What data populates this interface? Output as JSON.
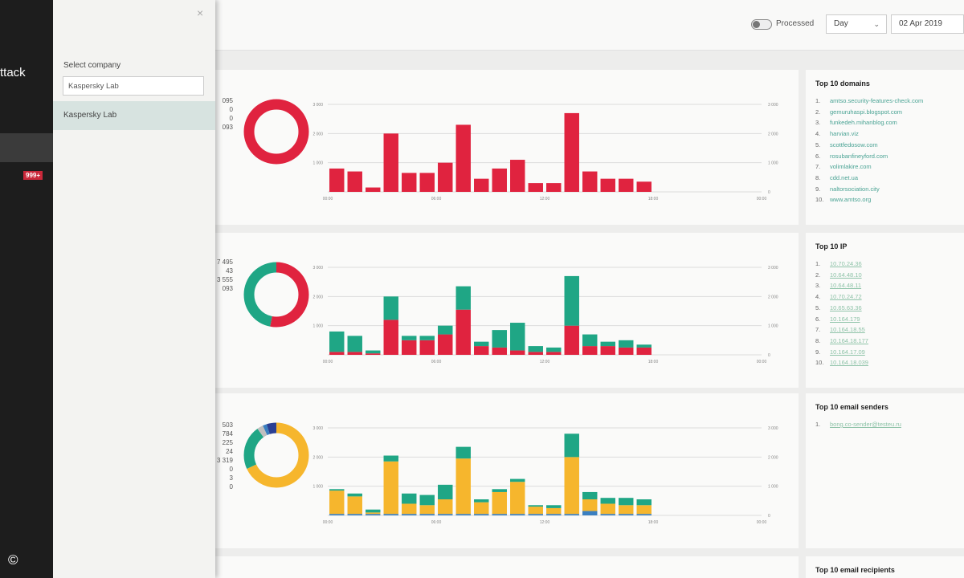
{
  "sidebar": {
    "title": "ttack",
    "badge": "999+",
    "copyright": "©"
  },
  "company_panel": {
    "close": "×",
    "label": "Select company",
    "search_value": "Kaspersky Lab",
    "option": "Kaspersky Lab"
  },
  "toolbar": {
    "processed_label": "Processed",
    "period": "Day",
    "period_caret": "⌄",
    "date": "02 Apr 2019"
  },
  "colors": {
    "red": "#e0233f",
    "green": "#1fa685",
    "yellow": "#f6b62d",
    "blue": "#3a7fc0",
    "navy": "#2b3f93",
    "grey": "#bfbfbf"
  },
  "panels": [
    {
      "legend": [
        "095",
        "0",
        "0",
        "093"
      ]
    },
    {
      "legend": [
        "7 495",
        "43",
        "3 555",
        "093"
      ]
    },
    {
      "legend": [
        "503",
        "784",
        "225",
        "24",
        "3 319",
        "0",
        "3",
        "0"
      ]
    }
  ],
  "chart_data": [
    {
      "type": "bar",
      "categories": [
        "00:00",
        "01:00",
        "02:00",
        "03:00",
        "04:00",
        "05:00",
        "06:00",
        "07:00",
        "08:00",
        "09:00",
        "10:00",
        "11:00",
        "12:00",
        "13:00",
        "14:00",
        "15:00",
        "16:00",
        "17:00",
        "18:00",
        "19:00",
        "20:00",
        "21:00",
        "22:00",
        "23:00"
      ],
      "series": [
        {
          "values": [
            800,
            700,
            150,
            2000,
            650,
            650,
            1000,
            2300,
            450,
            800,
            1100,
            300,
            300,
            2700,
            700,
            450,
            450,
            350,
            0,
            0,
            0,
            0,
            0,
            0
          ]
        }
      ],
      "ylim": [
        0,
        3000
      ],
      "yticks_left": [
        "3 000",
        "2 000",
        "1 000",
        ""
      ],
      "yticks_right": [
        "3 000",
        "2 000",
        "1 000",
        "0"
      ],
      "xticks": [
        "00:00",
        "06:00",
        "12:00",
        "18:00",
        "00:00"
      ],
      "donut": [
        {
          "value": 1,
          "color": "red"
        }
      ]
    },
    {
      "type": "bar",
      "stacked": true,
      "categories": [
        "00:00",
        "01:00",
        "02:00",
        "03:00",
        "04:00",
        "05:00",
        "06:00",
        "07:00",
        "08:00",
        "09:00",
        "10:00",
        "11:00",
        "12:00",
        "13:00",
        "14:00",
        "15:00",
        "16:00",
        "17:00",
        "18:00",
        "19:00",
        "20:00",
        "21:00",
        "22:00",
        "23:00"
      ],
      "series": [
        {
          "color": "red",
          "values": [
            100,
            100,
            50,
            1200,
            500,
            500,
            700,
            1550,
            300,
            250,
            150,
            100,
            100,
            1000,
            300,
            300,
            250,
            250,
            0,
            0,
            0,
            0,
            0,
            0
          ]
        },
        {
          "color": "green",
          "values": [
            700,
            550,
            100,
            800,
            150,
            150,
            300,
            800,
            150,
            600,
            950,
            200,
            150,
            1700,
            400,
            150,
            250,
            100,
            0,
            0,
            0,
            0,
            0,
            0
          ]
        }
      ],
      "ylim": [
        0,
        3000
      ],
      "yticks_left": [
        "3 000",
        "2 000",
        "1 000",
        ""
      ],
      "yticks_right": [
        "3 000",
        "2 000",
        "1 000",
        "0"
      ],
      "xticks": [
        "00:00",
        "06:00",
        "12:00",
        "18:00",
        "00:00"
      ],
      "donut": [
        {
          "value": 0.53,
          "color": "red"
        },
        {
          "value": 0.47,
          "color": "green"
        }
      ]
    },
    {
      "type": "bar",
      "stacked": true,
      "categories": [
        "00:00",
        "01:00",
        "02:00",
        "03:00",
        "04:00",
        "05:00",
        "06:00",
        "07:00",
        "08:00",
        "09:00",
        "10:00",
        "11:00",
        "12:00",
        "13:00",
        "14:00",
        "15:00",
        "16:00",
        "17:00",
        "18:00",
        "19:00",
        "20:00",
        "21:00",
        "22:00",
        "23:00"
      ],
      "series": [
        {
          "color": "blue",
          "values": [
            50,
            50,
            50,
            50,
            50,
            50,
            50,
            50,
            50,
            50,
            50,
            50,
            50,
            50,
            150,
            50,
            50,
            50,
            0,
            0,
            0,
            0,
            0,
            0
          ]
        },
        {
          "color": "yellow",
          "values": [
            800,
            600,
            50,
            1800,
            350,
            300,
            500,
            1900,
            400,
            750,
            1100,
            250,
            200,
            1950,
            400,
            350,
            300,
            300,
            0,
            0,
            0,
            0,
            0,
            0
          ]
        },
        {
          "color": "green",
          "values": [
            50,
            100,
            100,
            200,
            350,
            350,
            500,
            400,
            100,
            100,
            100,
            50,
            100,
            800,
            250,
            200,
            250,
            200,
            0,
            0,
            0,
            0,
            0,
            0
          ]
        }
      ],
      "ylim": [
        0,
        3000
      ],
      "yticks_left": [
        "3 000",
        "2 000",
        "1 000",
        ""
      ],
      "yticks_right": [
        "3 000",
        "2 000",
        "1 000",
        "0"
      ],
      "xticks": [
        "00:00",
        "06:00",
        "12:00",
        "18:00",
        "00:00"
      ],
      "donut": [
        {
          "value": 0.68,
          "color": "yellow"
        },
        {
          "value": 0.22,
          "color": "green"
        },
        {
          "value": 0.03,
          "color": "grey"
        },
        {
          "value": 0.02,
          "color": "blue"
        },
        {
          "value": 0.05,
          "color": "navy"
        }
      ]
    }
  ],
  "top_domains": {
    "title": "Top 10 domains",
    "items": [
      {
        "n": "1.",
        "v": "amtso.security-features-check.com"
      },
      {
        "n": "2.",
        "v": "gemuruhaspi.blogspot.com"
      },
      {
        "n": "3.",
        "v": "funkedeh.mihanblog.com"
      },
      {
        "n": "4.",
        "v": "harvian.viz"
      },
      {
        "n": "5.",
        "v": "scottfedosow.com"
      },
      {
        "n": "6.",
        "v": "rosubanfineyford.com"
      },
      {
        "n": "7.",
        "v": "volimlakire.com"
      },
      {
        "n": "8.",
        "v": "cdd.net.ua"
      },
      {
        "n": "9.",
        "v": "naltorsociation.city"
      },
      {
        "n": "10.",
        "v": "www.amtso.org"
      }
    ]
  },
  "top_ip": {
    "title": "Top 10 IP",
    "items": [
      {
        "n": "1.",
        "v": "10.70.24.36"
      },
      {
        "n": "2.",
        "v": "10.64.48.10"
      },
      {
        "n": "3.",
        "v": "10.64.48.11"
      },
      {
        "n": "4.",
        "v": "10.70.24.72"
      },
      {
        "n": "5.",
        "v": "10.65.63.36"
      },
      {
        "n": "6.",
        "v": "10.164.179"
      },
      {
        "n": "7.",
        "v": "10.164.18.55"
      },
      {
        "n": "8.",
        "v": "10.164.18.177"
      },
      {
        "n": "9.",
        "v": "10.164.17.09"
      },
      {
        "n": "10.",
        "v": "10.164.18.039"
      }
    ]
  },
  "top_senders": {
    "title": "Top 10 email senders",
    "items": [
      {
        "n": "1.",
        "v": "bong.co-sender@testeu.ru"
      }
    ]
  },
  "top_recipients": {
    "title": "Top 10 email recipients"
  }
}
